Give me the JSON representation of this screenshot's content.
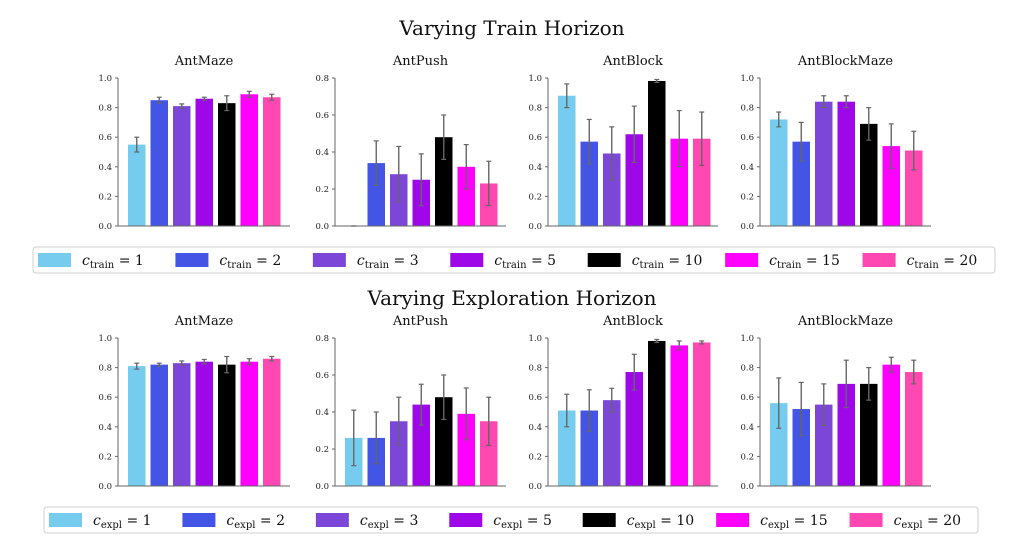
{
  "sections": [
    {
      "title": "Varying Train Horizon",
      "legend": {
        "symbol": "c",
        "subscript": "train",
        "entries": [
          {
            "value": "1",
            "color": "#76CCEE"
          },
          {
            "value": "2",
            "color": "#4455E5"
          },
          {
            "value": "3",
            "color": "#7C47D9"
          },
          {
            "value": "5",
            "color": "#9E08E9"
          },
          {
            "value": "10",
            "color": "#000000"
          },
          {
            "value": "15",
            "color": "#FF00FF"
          },
          {
            "value": "20",
            "color": "#FF48B2"
          }
        ]
      }
    },
    {
      "title": "Varying Exploration Horizon",
      "legend": {
        "symbol": "c",
        "subscript": "expl",
        "entries": [
          {
            "value": "1",
            "color": "#76CCEE"
          },
          {
            "value": "2",
            "color": "#4455E5"
          },
          {
            "value": "3",
            "color": "#7C47D9"
          },
          {
            "value": "5",
            "color": "#9E08E9"
          },
          {
            "value": "10",
            "color": "#000000"
          },
          {
            "value": "15",
            "color": "#FF00FF"
          },
          {
            "value": "20",
            "color": "#FF48B2"
          }
        ]
      }
    }
  ],
  "chart_data": [
    {
      "type": "bar",
      "section": "Varying Train Horizon",
      "title": "AntMaze",
      "ylim": [
        0,
        1.0
      ],
      "yticks": [
        "0.0",
        "0.2",
        "0.4",
        "0.6",
        "0.8",
        "1.0"
      ],
      "categories": [
        "1",
        "2",
        "3",
        "5",
        "10",
        "15",
        "20"
      ],
      "values": [
        0.55,
        0.85,
        0.81,
        0.86,
        0.83,
        0.89,
        0.87
      ],
      "errors": [
        0.05,
        0.02,
        0.015,
        0.01,
        0.05,
        0.02,
        0.02
      ]
    },
    {
      "type": "bar",
      "section": "Varying Train Horizon",
      "title": "AntPush",
      "ylim": [
        0,
        0.8
      ],
      "yticks": [
        "0.0",
        "0.2",
        "0.4",
        "0.6",
        "0.8"
      ],
      "categories": [
        "1",
        "2",
        "3",
        "5",
        "10",
        "15",
        "20"
      ],
      "values": [
        0.0,
        0.34,
        0.28,
        0.25,
        0.48,
        0.32,
        0.23
      ],
      "errors": [
        0.0,
        0.12,
        0.15,
        0.14,
        0.12,
        0.12,
        0.12
      ]
    },
    {
      "type": "bar",
      "section": "Varying Train Horizon",
      "title": "AntBlock",
      "ylim": [
        0,
        1.0
      ],
      "yticks": [
        "0.0",
        "0.2",
        "0.4",
        "0.6",
        "0.8",
        "1.0"
      ],
      "categories": [
        "1",
        "2",
        "3",
        "5",
        "10",
        "15",
        "20"
      ],
      "values": [
        0.88,
        0.57,
        0.49,
        0.62,
        0.98,
        0.59,
        0.59
      ],
      "errors": [
        0.08,
        0.15,
        0.18,
        0.19,
        0.01,
        0.19,
        0.18
      ]
    },
    {
      "type": "bar",
      "section": "Varying Train Horizon",
      "title": "AntBlockMaze",
      "ylim": [
        0,
        1.0
      ],
      "yticks": [
        "0.0",
        "0.2",
        "0.4",
        "0.6",
        "0.8",
        "1.0"
      ],
      "categories": [
        "1",
        "2",
        "3",
        "5",
        "10",
        "15",
        "20"
      ],
      "values": [
        0.72,
        0.57,
        0.84,
        0.84,
        0.69,
        0.54,
        0.51
      ],
      "errors": [
        0.05,
        0.13,
        0.04,
        0.04,
        0.11,
        0.15,
        0.13
      ]
    },
    {
      "type": "bar",
      "section": "Varying Exploration Horizon",
      "title": "AntMaze",
      "ylim": [
        0,
        1.0
      ],
      "yticks": [
        "0.0",
        "0.2",
        "0.4",
        "0.6",
        "0.8",
        "1.0"
      ],
      "categories": [
        "1",
        "2",
        "3",
        "5",
        "10",
        "15",
        "20"
      ],
      "values": [
        0.81,
        0.82,
        0.83,
        0.84,
        0.82,
        0.84,
        0.86
      ],
      "errors": [
        0.02,
        0.01,
        0.015,
        0.015,
        0.055,
        0.02,
        0.015
      ]
    },
    {
      "type": "bar",
      "section": "Varying Exploration Horizon",
      "title": "AntPush",
      "ylim": [
        0,
        0.8
      ],
      "yticks": [
        "0.0",
        "0.2",
        "0.4",
        "0.6",
        "0.8"
      ],
      "categories": [
        "1",
        "2",
        "3",
        "5",
        "10",
        "15",
        "20"
      ],
      "values": [
        0.26,
        0.26,
        0.35,
        0.44,
        0.48,
        0.39,
        0.35
      ],
      "errors": [
        0.15,
        0.14,
        0.13,
        0.11,
        0.12,
        0.14,
        0.13
      ]
    },
    {
      "type": "bar",
      "section": "Varying Exploration Horizon",
      "title": "AntBlock",
      "ylim": [
        0,
        1.0
      ],
      "yticks": [
        "0.0",
        "0.2",
        "0.4",
        "0.6",
        "0.8",
        "1.0"
      ],
      "categories": [
        "1",
        "2",
        "3",
        "5",
        "10",
        "15",
        "20"
      ],
      "values": [
        0.51,
        0.51,
        0.58,
        0.77,
        0.98,
        0.95,
        0.97
      ],
      "errors": [
        0.11,
        0.14,
        0.08,
        0.12,
        0.01,
        0.03,
        0.01
      ]
    },
    {
      "type": "bar",
      "section": "Varying Exploration Horizon",
      "title": "AntBlockMaze",
      "ylim": [
        0,
        1.0
      ],
      "yticks": [
        "0.0",
        "0.2",
        "0.4",
        "0.6",
        "0.8",
        "1.0"
      ],
      "categories": [
        "1",
        "2",
        "3",
        "5",
        "10",
        "15",
        "20"
      ],
      "values": [
        0.56,
        0.52,
        0.55,
        0.69,
        0.69,
        0.82,
        0.77
      ],
      "errors": [
        0.17,
        0.18,
        0.14,
        0.16,
        0.11,
        0.05,
        0.08
      ]
    }
  ]
}
